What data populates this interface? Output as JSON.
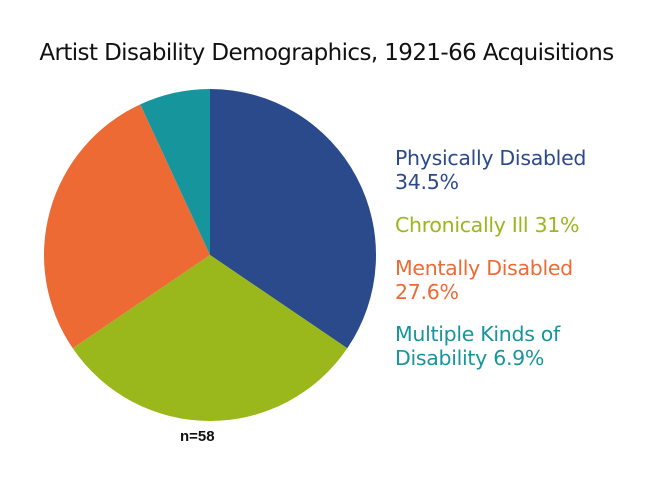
{
  "chart_data": {
    "type": "pie",
    "title": "Artist Disability Demographics, 1921-66 Acquisitions",
    "start": "top, clockwise",
    "slices": [
      {
        "name": "Physically Disabled",
        "value": 34.5,
        "color": "#2B4A8B"
      },
      {
        "name": "Chronically Ill",
        "value": 31,
        "color": "#9AB71B"
      },
      {
        "name": "Mentally Disabled",
        "value": 27.6,
        "color": "#EE6A35"
      },
      {
        "name": "Multiple Kinds of Disability",
        "value": 6.9,
        "color": "#16969C"
      }
    ],
    "legend_placement": "right",
    "legend": [
      {
        "lines": [
          "Physically Disabled",
          "34.5%"
        ]
      },
      {
        "lines": [
          "Chronically Ill 31%"
        ]
      },
      {
        "lines": [
          "Mentally Disabled",
          "27.6%"
        ]
      },
      {
        "lines": [
          "Multiple Kinds of",
          "Disability 6.9%"
        ]
      }
    ],
    "annotation": "n=58"
  }
}
